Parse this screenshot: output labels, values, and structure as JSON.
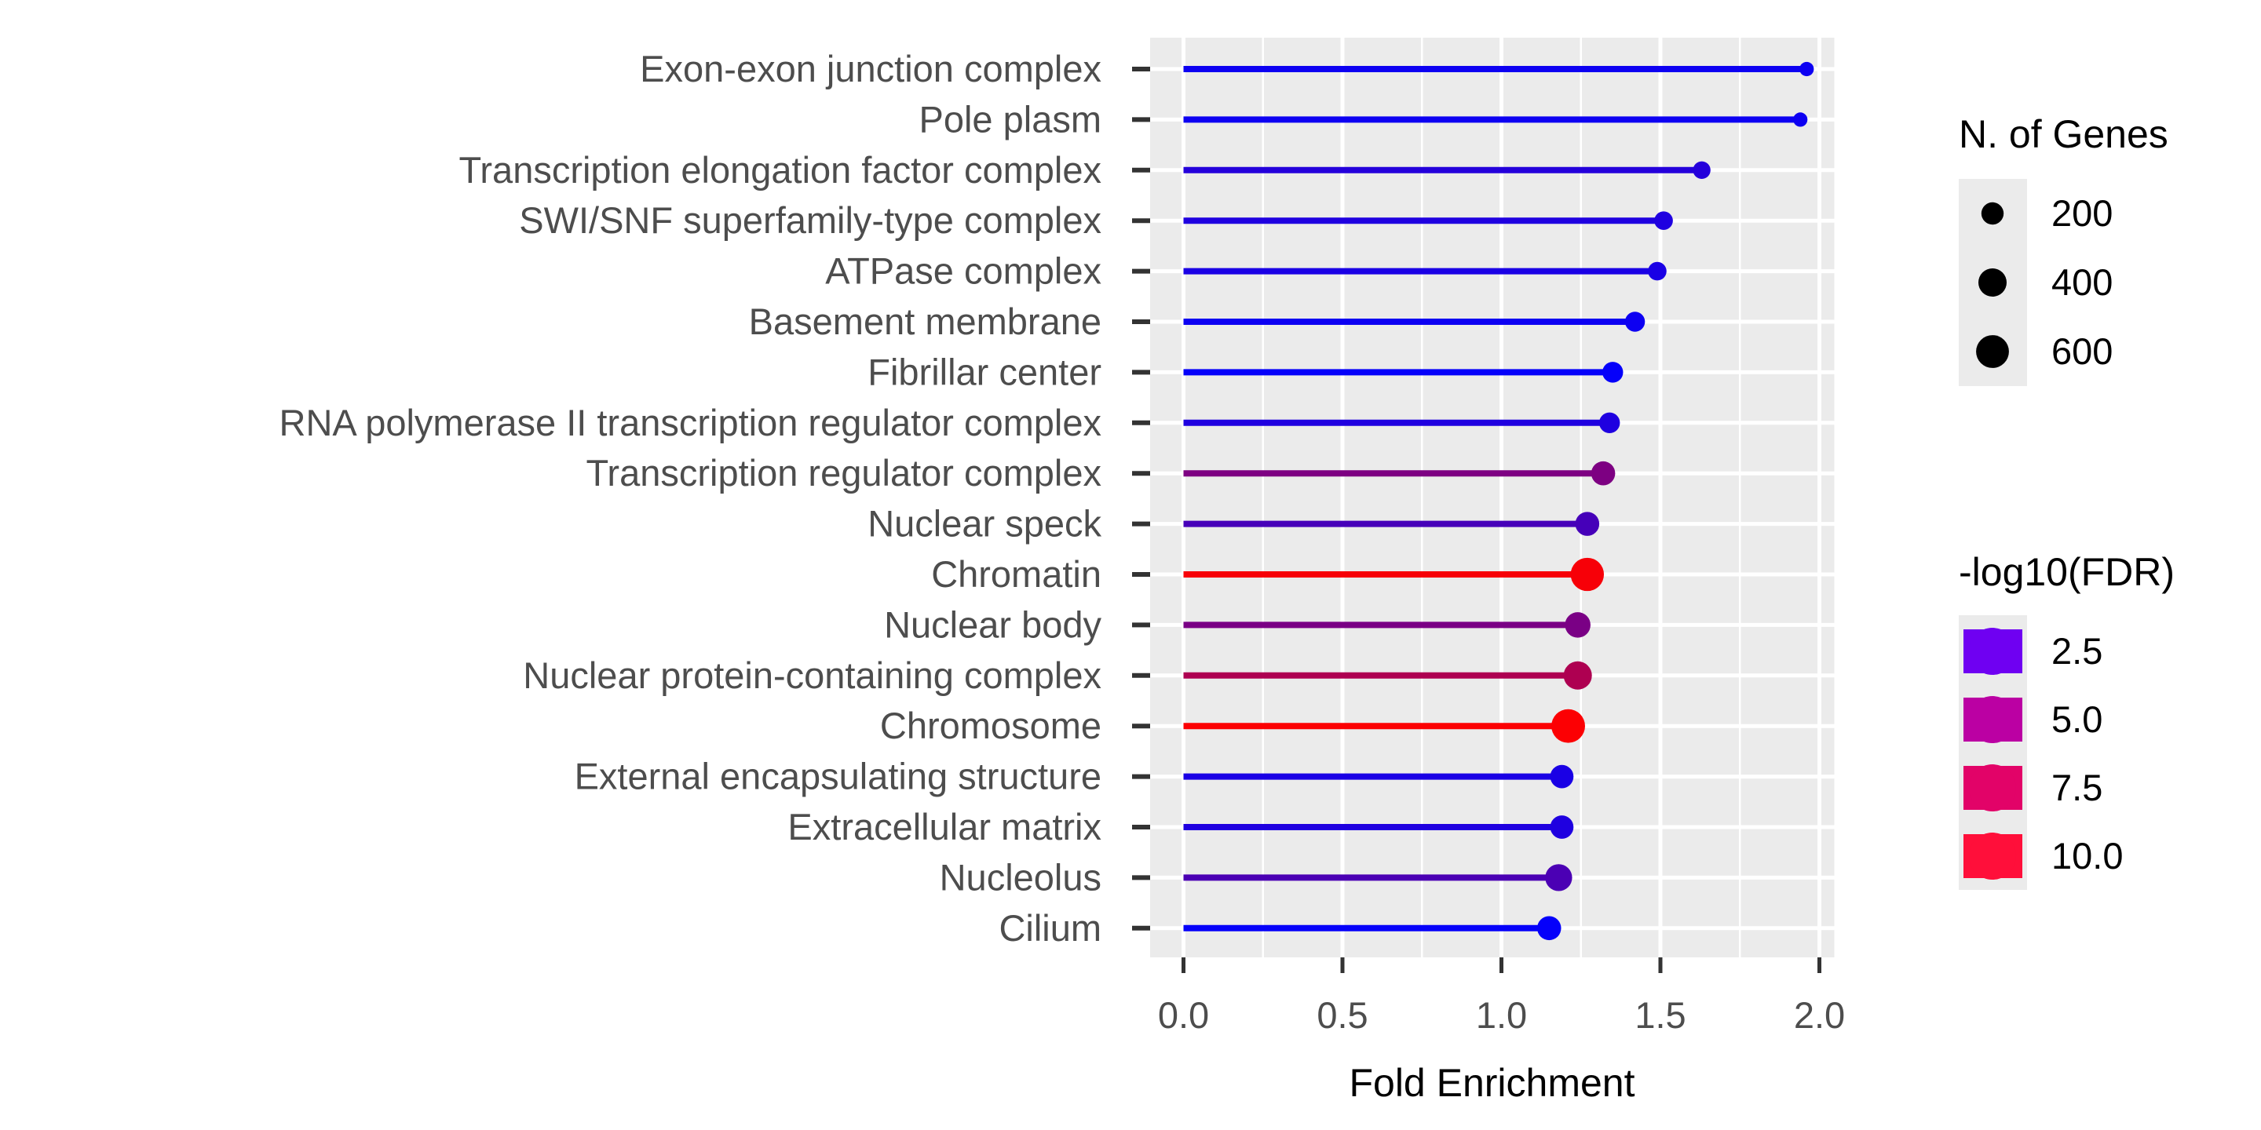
{
  "chart_data": {
    "type": "lollipop",
    "title": "",
    "xlabel": "Fold Enrichment",
    "ylabel": "",
    "xlim": [
      -0.13,
      2.07
    ],
    "x_ticks": [
      0.0,
      0.5,
      1.0,
      1.5,
      2.0
    ],
    "x_tick_labels": [
      "0.0",
      "0.5",
      "1.0",
      "1.5",
      "2.0"
    ],
    "grid": true,
    "categories": [
      "Exon-exon junction complex",
      "Pole plasm",
      "Transcription elongation factor complex",
      "SWI/SNF superfamily-type complex",
      "ATPase complex",
      "Basement membrane",
      "Fibrillar center",
      "RNA polymerase II transcription regulator complex",
      "Transcription regulator complex",
      "Nuclear speck",
      "Chromatin",
      "Nuclear body",
      "Nuclear protein-containing complex",
      "Chromosome",
      "External encapsulating structure",
      "Extracellular matrix",
      "Nucleolus",
      "Cilium"
    ],
    "fold_enrichment": [
      1.96,
      1.94,
      1.63,
      1.51,
      1.49,
      1.42,
      1.35,
      1.34,
      1.32,
      1.27,
      1.27,
      1.24,
      1.24,
      1.21,
      1.19,
      1.19,
      1.18,
      1.15
    ],
    "n_genes": [
      40,
      40,
      90,
      110,
      110,
      140,
      160,
      160,
      250,
      250,
      620,
      300,
      400,
      640,
      230,
      230,
      350,
      250
    ],
    "neg_log10_fdr": [
      1.3,
      1.3,
      2.2,
      2.0,
      1.8,
      1.3,
      1.0,
      2.0,
      5.6,
      3.5,
      10.3,
      5.5,
      7.5,
      10.5,
      1.8,
      2.0,
      3.7,
      1.0
    ],
    "size_legend": {
      "title": "N. of Genes",
      "values": [
        200,
        400,
        600
      ],
      "labels": [
        "200",
        "400",
        "600"
      ]
    },
    "color_legend": {
      "title": "-log10(FDR)",
      "values": [
        2.5,
        5.0,
        7.5,
        10.0
      ],
      "labels": [
        "2.5",
        "5.0",
        "7.5",
        "10.0"
      ],
      "colors": [
        "#6f00f2",
        "#bb00a3",
        "#e20368",
        "#ff0f3a"
      ]
    },
    "color_scale": {
      "low": "#0000ff",
      "high": "#ff0000",
      "domain": [
        0.8,
        10.6
      ]
    },
    "legend_position": "right",
    "panel_background": "#ebebeb",
    "grid_color": "#ffffff"
  }
}
